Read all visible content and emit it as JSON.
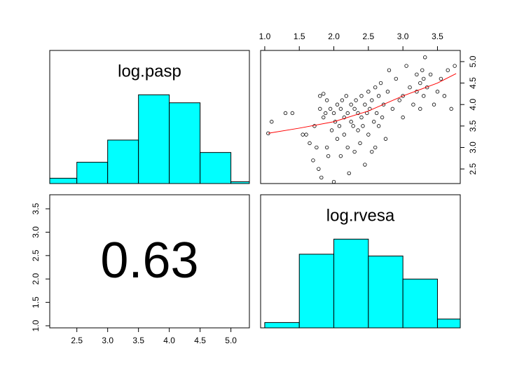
{
  "chart_data": [
    {
      "type": "histogram",
      "title": "log.pasp",
      "bins": [
        2.0,
        2.5,
        3.0,
        3.5,
        4.0,
        4.5,
        5.0,
        5.5
      ],
      "values": [
        0.06,
        0.24,
        0.49,
        1.0,
        0.91,
        0.35,
        0.02
      ],
      "color": "#00ffff",
      "xlim": [
        2.06,
        5.3
      ],
      "ylim": [
        0,
        1.5
      ]
    },
    {
      "type": "scatter",
      "xlim": [
        0.94,
        3.83
      ],
      "ylim": [
        2.16,
        5.26
      ],
      "x_axis_side": "top",
      "y_axis_side": "right",
      "xticks": [
        {
          "value": 1.0,
          "label": "1.0"
        },
        1.5,
        {
          "value": 2.0,
          "label": "2.0"
        },
        2.5,
        {
          "value": 3.0,
          "label": "3.0"
        },
        3.5
      ],
      "yticks": [
        2.5,
        {
          "value": 3.0,
          "label": "3.0"
        },
        3.5,
        {
          "value": 4.0,
          "label": "4.0"
        },
        4.5,
        {
          "value": 5.0,
          "label": "5.0"
        }
      ],
      "series": [
        {
          "color": "#000000",
          "x": [
            1.05,
            1.1,
            1.3,
            1.4,
            1.55,
            1.6,
            1.65,
            1.7,
            1.72,
            1.75,
            1.78,
            1.8,
            1.8,
            1.82,
            1.85,
            1.85,
            1.88,
            1.9,
            1.9,
            1.92,
            1.95,
            1.97,
            2.0,
            2.0,
            2.02,
            2.05,
            2.05,
            2.08,
            2.1,
            2.1,
            2.12,
            2.15,
            2.15,
            2.18,
            2.2,
            2.2,
            2.22,
            2.25,
            2.25,
            2.28,
            2.3,
            2.3,
            2.32,
            2.35,
            2.35,
            2.38,
            2.4,
            2.4,
            2.42,
            2.45,
            2.45,
            2.48,
            2.5,
            2.5,
            2.52,
            2.55,
            2.55,
            2.58,
            2.6,
            2.6,
            2.62,
            2.65,
            2.65,
            2.68,
            2.7,
            2.72,
            2.75,
            2.78,
            2.8,
            2.85,
            2.9,
            2.95,
            3.0,
            3.0,
            3.05,
            3.1,
            3.15,
            3.2,
            3.2,
            3.25,
            3.25,
            3.28,
            3.3,
            3.3,
            3.32,
            3.35,
            3.4,
            3.45,
            3.5,
            3.55,
            3.6,
            3.65,
            3.7,
            3.75
          ],
          "values": [
            3.33,
            3.6,
            3.8,
            3.8,
            3.3,
            3.3,
            3.1,
            2.7,
            3.5,
            3.0,
            2.5,
            3.9,
            4.2,
            2.3,
            3.7,
            4.25,
            3.8,
            3.0,
            4.1,
            2.8,
            3.9,
            3.4,
            3.8,
            2.2,
            3.6,
            3.2,
            4.0,
            3.5,
            2.8,
            3.9,
            4.1,
            3.3,
            3.7,
            4.2,
            3.0,
            3.8,
            2.4,
            3.6,
            4.0,
            3.5,
            3.9,
            2.9,
            4.1,
            3.4,
            3.8,
            3.1,
            4.2,
            3.7,
            3.5,
            2.6,
            4.0,
            3.8,
            3.3,
            4.3,
            3.9,
            2.9,
            4.1,
            3.6,
            4.4,
            3.0,
            3.8,
            4.2,
            3.5,
            4.5,
            3.7,
            4.0,
            3.2,
            4.3,
            4.8,
            3.9,
            4.6,
            4.1,
            4.2,
            3.7,
            4.9,
            4.4,
            4.0,
            4.7,
            4.3,
            4.5,
            3.9,
            4.8,
            4.6,
            4.2,
            5.1,
            4.4,
            4.7,
            4.0,
            4.3,
            4.6,
            4.2,
            4.8,
            3.9,
            4.9
          ]
        },
        {
          "color": "#ff0000",
          "type": "line",
          "x": [
            1.05,
            1.5,
            2.0,
            2.5,
            3.0,
            3.5,
            3.77
          ],
          "values": [
            3.33,
            3.45,
            3.6,
            3.85,
            4.2,
            4.5,
            4.72
          ]
        }
      ]
    },
    {
      "type": "text",
      "correlation": 0.63,
      "xlim": [
        2.06,
        5.3
      ],
      "ylim": [
        0.955,
        3.8
      ],
      "x_axis_side": "bottom",
      "y_axis_side": "left",
      "xticks": [
        2.5,
        {
          "value": 3.0,
          "label": "3.0"
        },
        3.5,
        {
          "value": 4.0,
          "label": "4.0"
        },
        4.5,
        {
          "value": 5.0,
          "label": "5.0"
        }
      ],
      "yticks": [
        {
          "value": 1.0,
          "label": "1.0"
        },
        1.5,
        {
          "value": 2.0,
          "label": "2.0"
        },
        2.5,
        {
          "value": 3.0,
          "label": "3.0"
        },
        3.5
      ]
    },
    {
      "type": "histogram",
      "title": "log.rvesa",
      "bins": [
        1.0,
        1.5,
        2.0,
        2.5,
        3.0,
        3.5,
        4.0
      ],
      "values": [
        0.06,
        0.83,
        1.0,
        0.81,
        0.55,
        0.1
      ],
      "color": "#00ffff",
      "xlim": [
        0.94,
        3.83
      ],
      "ylim": [
        0,
        1.5
      ]
    }
  ]
}
